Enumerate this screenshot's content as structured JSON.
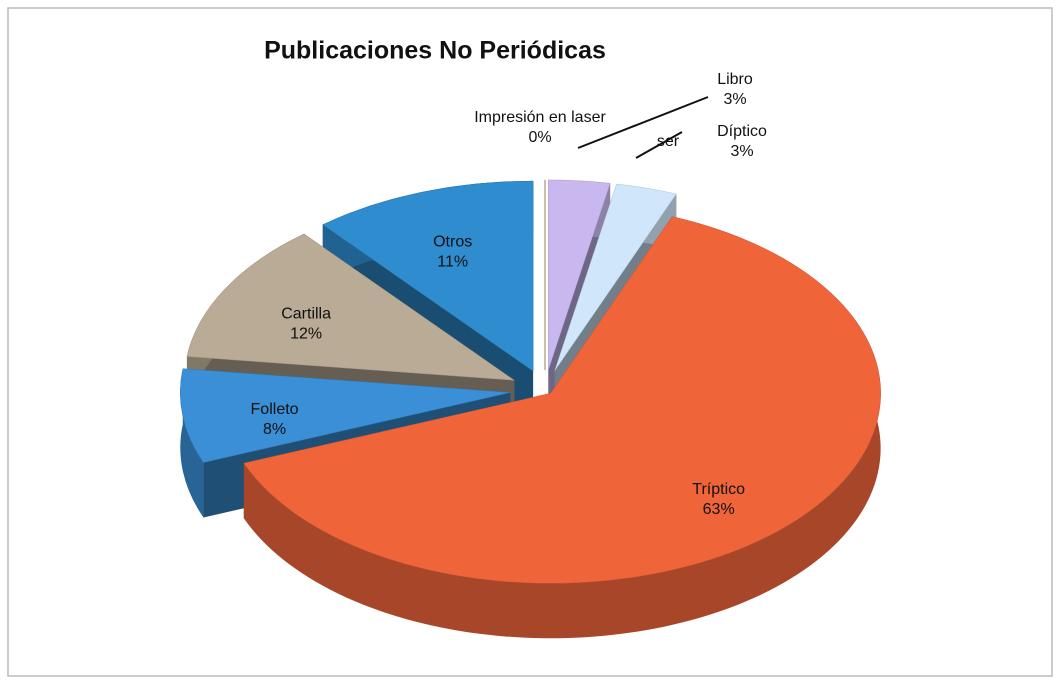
{
  "chart_data": {
    "type": "pie3d",
    "title": "Publicaciones No Periódicas",
    "categories": [
      "Impresión en laser",
      "Libro",
      "Díptico",
      "Tríptico",
      "Folleto",
      "Cartilla",
      "Otros"
    ],
    "values": [
      0,
      3,
      3,
      63,
      8,
      12,
      11
    ],
    "value_labels": [
      "0%",
      "3%",
      "3%",
      "63%",
      "8%",
      "12%",
      "11%"
    ],
    "colors": [
      "#8b5a2b",
      "#c9b8f0",
      "#cfe6fb",
      "#f0643a",
      "#3a8fd6",
      "#b9ab95",
      "#2e8ccf"
    ],
    "annotations": [
      "ser"
    ]
  }
}
